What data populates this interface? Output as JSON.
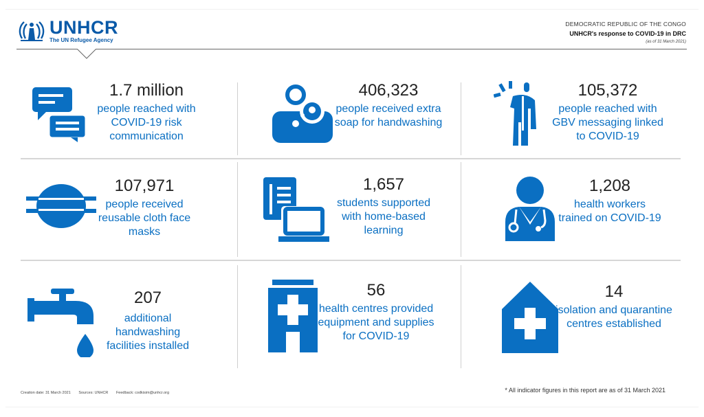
{
  "brand": {
    "name": "UNHCR",
    "tagline": "The UN Refugee Agency",
    "color": "#0a5aa8"
  },
  "header": {
    "country": "DEMOCRATIC REPUBLIC OF THE CONGO",
    "title": "UNHCR's response to COVID-19 in DRC",
    "as_of": "(as of 31 March 2021)"
  },
  "accent_color": "#0a6fc2",
  "indicators": [
    {
      "value": "1.7 million",
      "description": "people reached with COVID-19 risk communication",
      "icon": "speech-bubbles-icon"
    },
    {
      "value": "406,323",
      "description": "people received extra soap for handwashing",
      "icon": "soap-icon"
    },
    {
      "value": "105,372",
      "description": "people reached with GBV messaging linked to COVID-19",
      "icon": "gbv-person-icon"
    },
    {
      "value": "107,971",
      "description": "people received reusable cloth face masks",
      "icon": "face-mask-icon"
    },
    {
      "value": "1,657",
      "description": "students supported with home-based learning",
      "icon": "book-laptop-icon"
    },
    {
      "value": "1,208",
      "description": "health workers trained on COVID-19",
      "icon": "health-worker-icon"
    },
    {
      "value": "207",
      "description": "additional handwashing facilities installed",
      "icon": "water-tap-icon"
    },
    {
      "value": "56",
      "description": "health centres provided equipment and supplies for COVID-19",
      "icon": "health-centre-icon"
    },
    {
      "value": "14",
      "description": "isolation and quarantine centres established",
      "icon": "quarantine-centre-icon"
    }
  ],
  "footer": {
    "creation_date": "Creation date: 31 March 2021",
    "sources": "Sources: UNHCR",
    "feedback": "Feedback: codkisim@unhcr.org",
    "note": "* All indicator figures in this report are as of 31 March 2021"
  }
}
